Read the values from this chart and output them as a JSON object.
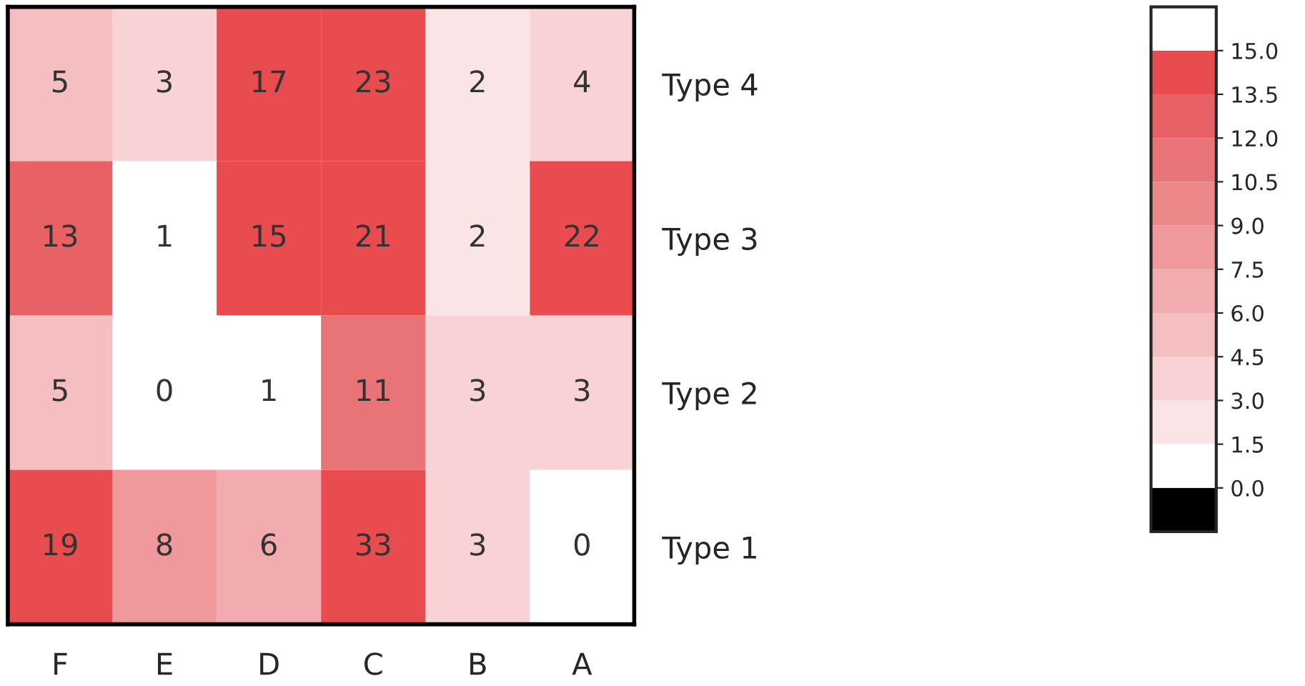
{
  "chart_data": {
    "type": "heatmap",
    "categories": [
      "F",
      "E",
      "D",
      "C",
      "B",
      "A"
    ],
    "y_categories": [
      "Type 4",
      "Type 3",
      "Type 2",
      "Type 1"
    ],
    "cells": [
      [
        5,
        3,
        17,
        23,
        2,
        4
      ],
      [
        13,
        1,
        15,
        21,
        2,
        22
      ],
      [
        5,
        0,
        1,
        11,
        3,
        3
      ],
      [
        19,
        8,
        6,
        33,
        3,
        0
      ]
    ],
    "clim": [
      0,
      15
    ],
    "cticks": [
      {
        "value": 0,
        "label": "0.0"
      },
      1.5,
      {
        "value": 3,
        "label": "3.0"
      },
      4.5,
      {
        "value": 6,
        "label": "6.0"
      },
      7.5,
      {
        "value": 9,
        "label": "9.0"
      },
      10.5,
      {
        "value": 12,
        "label": "12.0"
      },
      13.5,
      {
        "value": 15,
        "label": "15.0"
      }
    ],
    "data_labels": true
  }
}
